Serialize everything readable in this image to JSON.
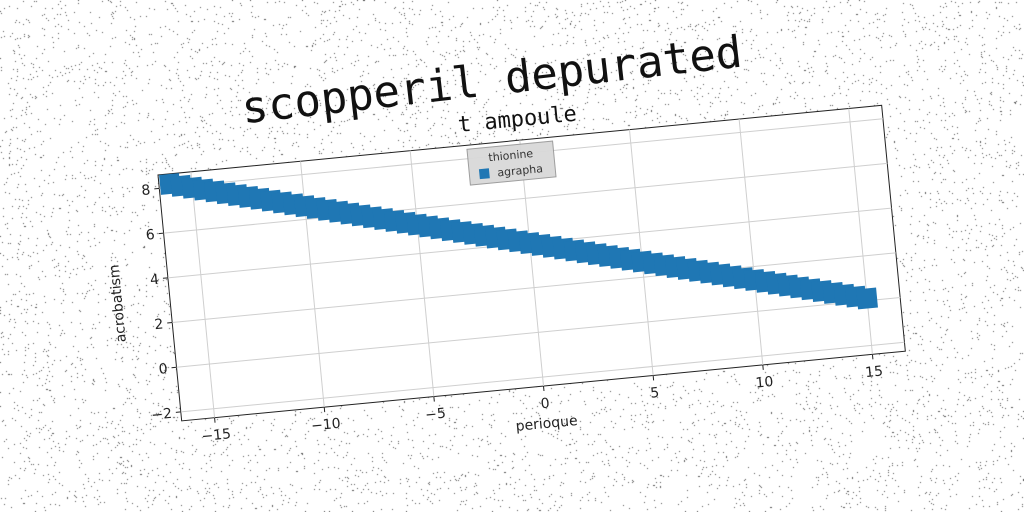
{
  "chart_data": {
    "type": "scatter",
    "suptitle": "scopperil depurated",
    "title": "t ampoule",
    "xlabel": "perioque",
    "ylabel": "acrobatism",
    "xlim": [
      -16.5,
      16.5
    ],
    "ylim": [
      -2.4,
      8.6
    ],
    "xticks": [
      -15,
      -10,
      -5,
      0,
      5,
      10,
      15
    ],
    "yticks": [
      -2,
      0,
      2,
      4,
      6,
      8
    ],
    "grid": true,
    "legend": {
      "title": "thionine",
      "placement": "top-center"
    },
    "series": [
      {
        "name": "agrapha",
        "color": "#1f77b4",
        "marker": "square",
        "x_range": [
          -16,
          15
        ],
        "y_at_x_min": 8.15,
        "y_at_x_max": 0.1,
        "n_points": 63
      }
    ]
  }
}
